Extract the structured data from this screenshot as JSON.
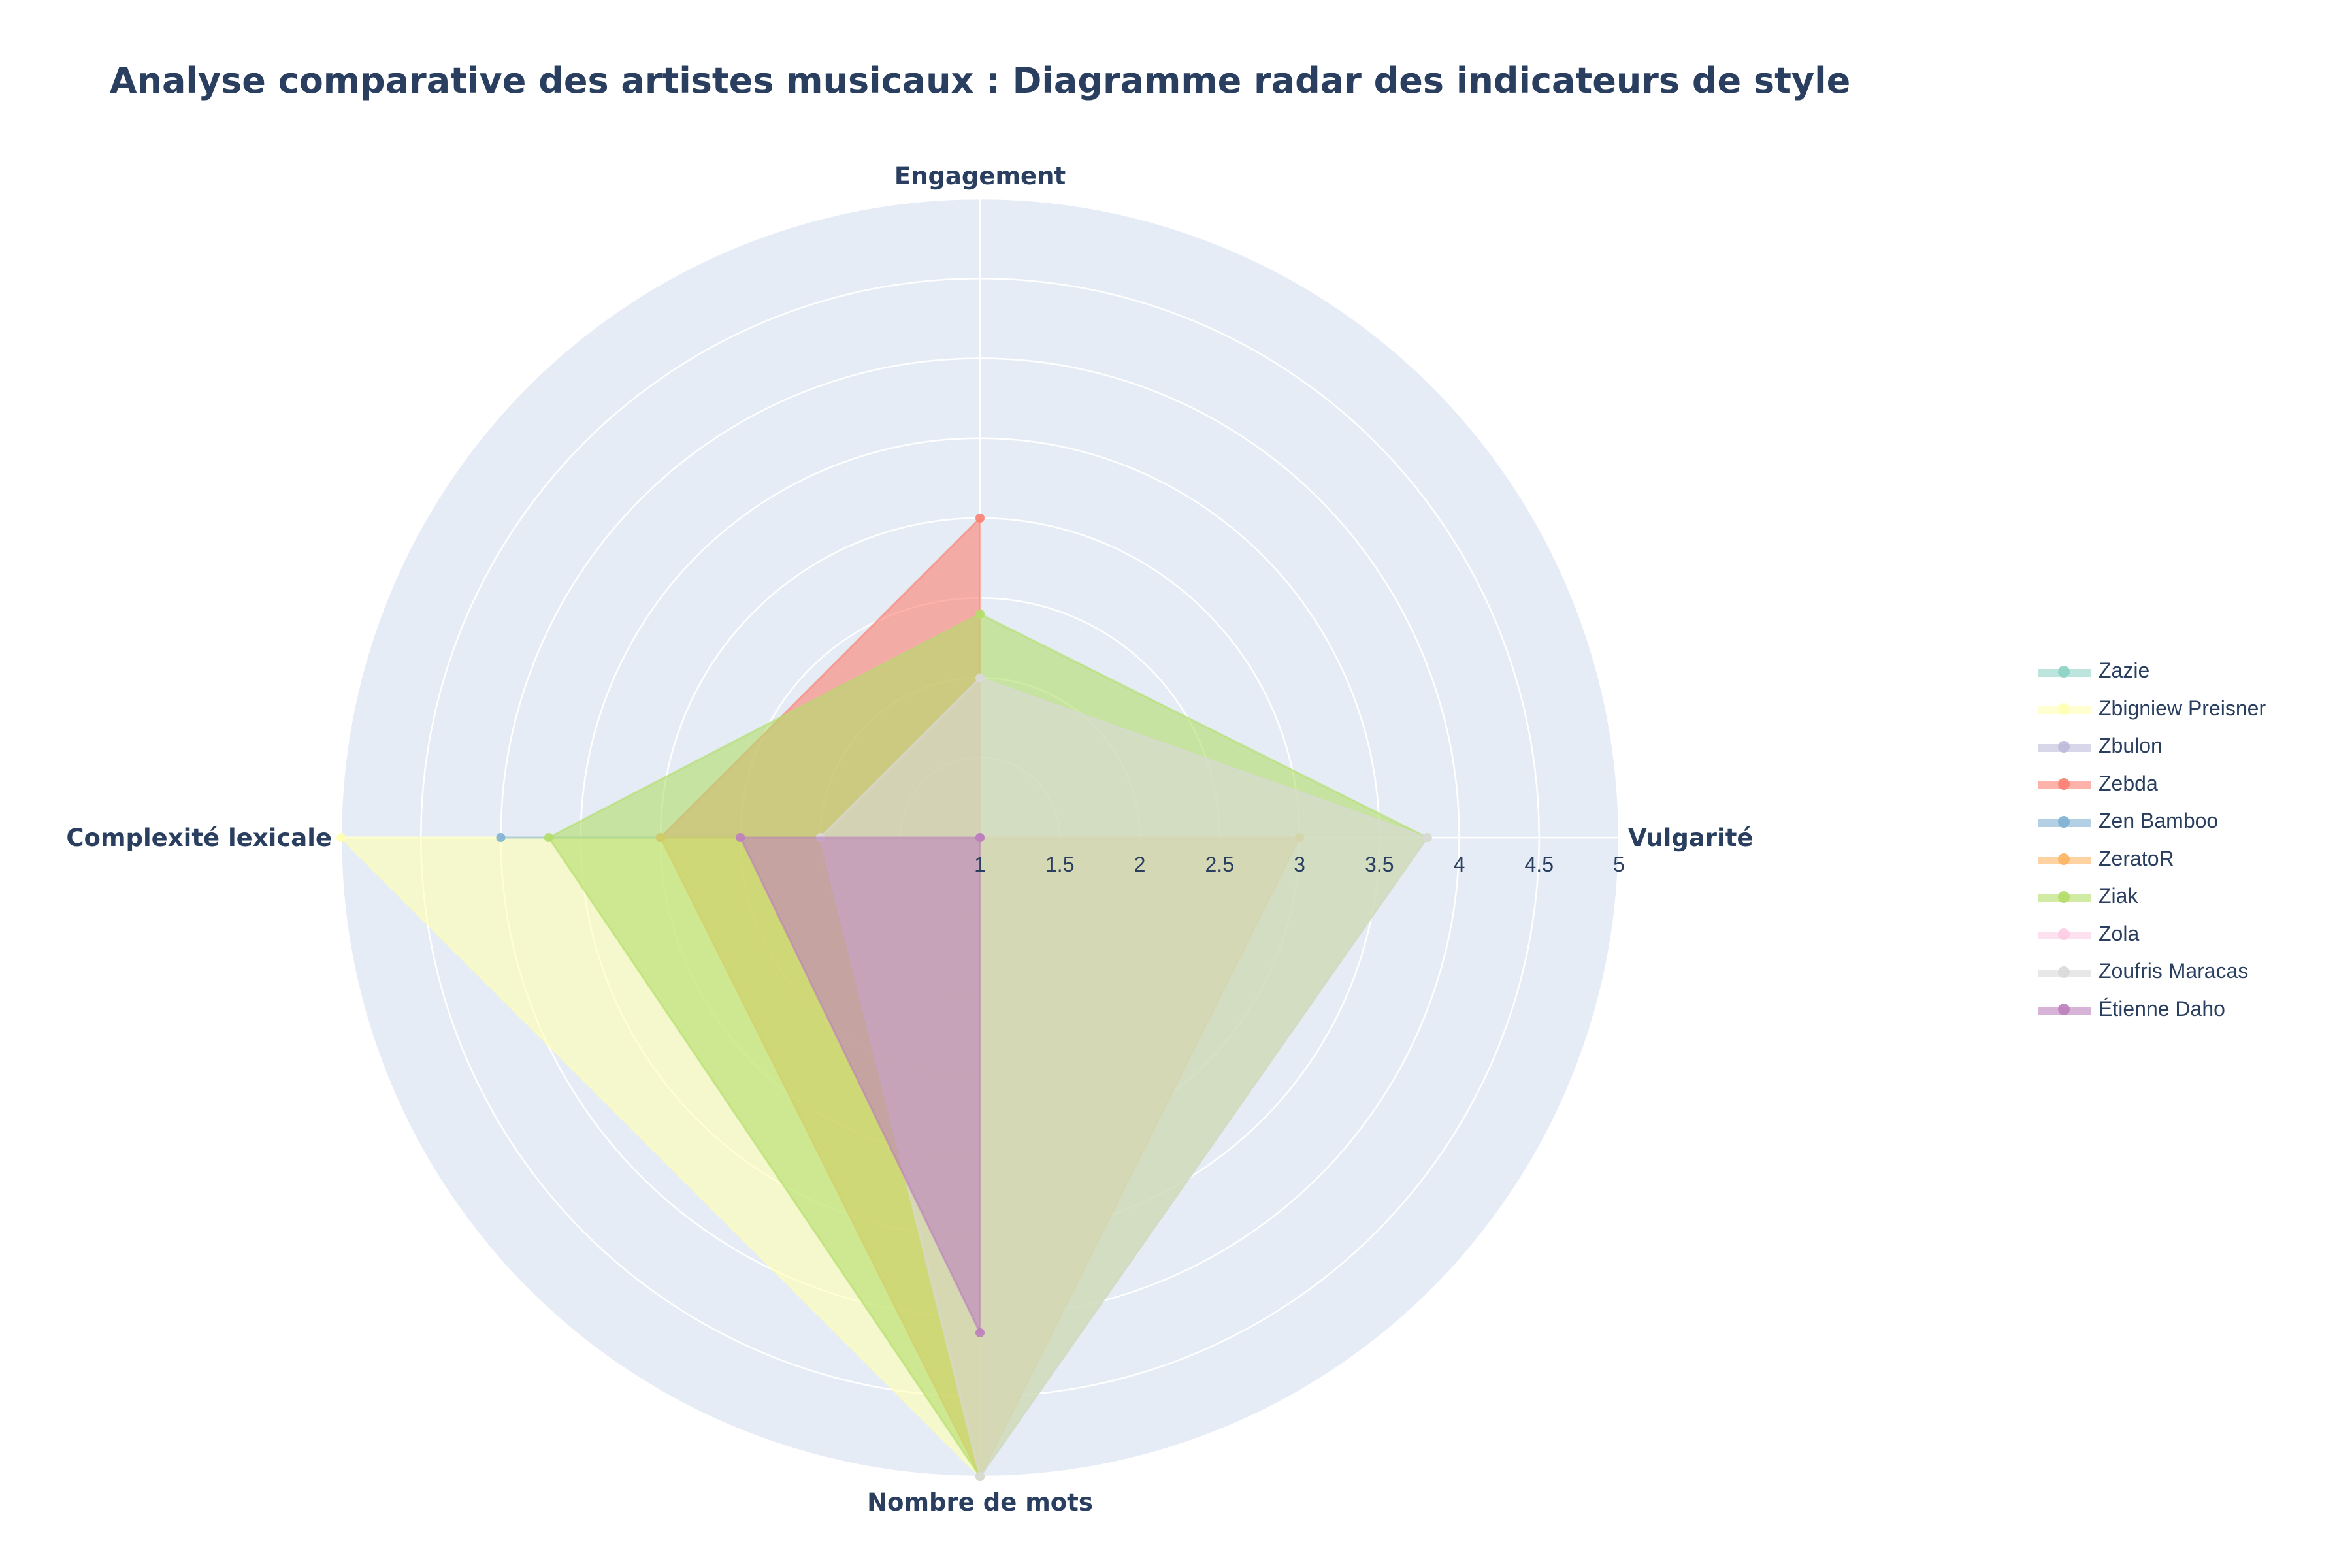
{
  "chart_data": {
    "type": "radar",
    "title": "Analyse comparative des artistes musicaux : Diagramme radar des indicateurs de style",
    "axes": [
      "Engagement",
      "Vulgarité",
      "Nombre de mots",
      "Complexité lexicale"
    ],
    "radial_range": [
      1,
      5
    ],
    "radial_ticks": [
      "1",
      "1.5",
      "2",
      "2.5",
      "3",
      "3.5",
      "4",
      "4.5",
      "5"
    ],
    "grid": true,
    "legend_position": "right",
    "series": [
      {
        "name": "Zazie",
        "values": [
          1,
          1,
          1,
          1
        ],
        "color": "#8dd3c7"
      },
      {
        "name": "Zbigniew Preisner",
        "values": [
          1,
          1,
          5,
          5
        ],
        "color": "#ffffb3"
      },
      {
        "name": "Zbulon",
        "values": [
          1,
          1,
          1,
          1
        ],
        "color": "#bebada"
      },
      {
        "name": "Zebda",
        "values": [
          3,
          1,
          1,
          3
        ],
        "color": "#fb8072"
      },
      {
        "name": "Zen Bamboo",
        "values": [
          1,
          1,
          1,
          4
        ],
        "color": "#80b1d3"
      },
      {
        "name": "ZeratoR",
        "values": [
          1,
          3,
          5,
          3
        ],
        "color": "#fdb462"
      },
      {
        "name": "Ziak",
        "values": [
          2.4,
          3.8,
          5,
          3.7
        ],
        "color": "#b3de69"
      },
      {
        "name": "Zola",
        "values": [
          1,
          1,
          1,
          1
        ],
        "color": "#fccde5"
      },
      {
        "name": "Zoufris Maracas",
        "values": [
          2,
          3.8,
          5,
          2
        ],
        "color": "#d9d9d9"
      },
      {
        "name": "Étienne Daho",
        "values": [
          1,
          1,
          4.1,
          2.5
        ],
        "color": "#bc80bd"
      }
    ]
  }
}
